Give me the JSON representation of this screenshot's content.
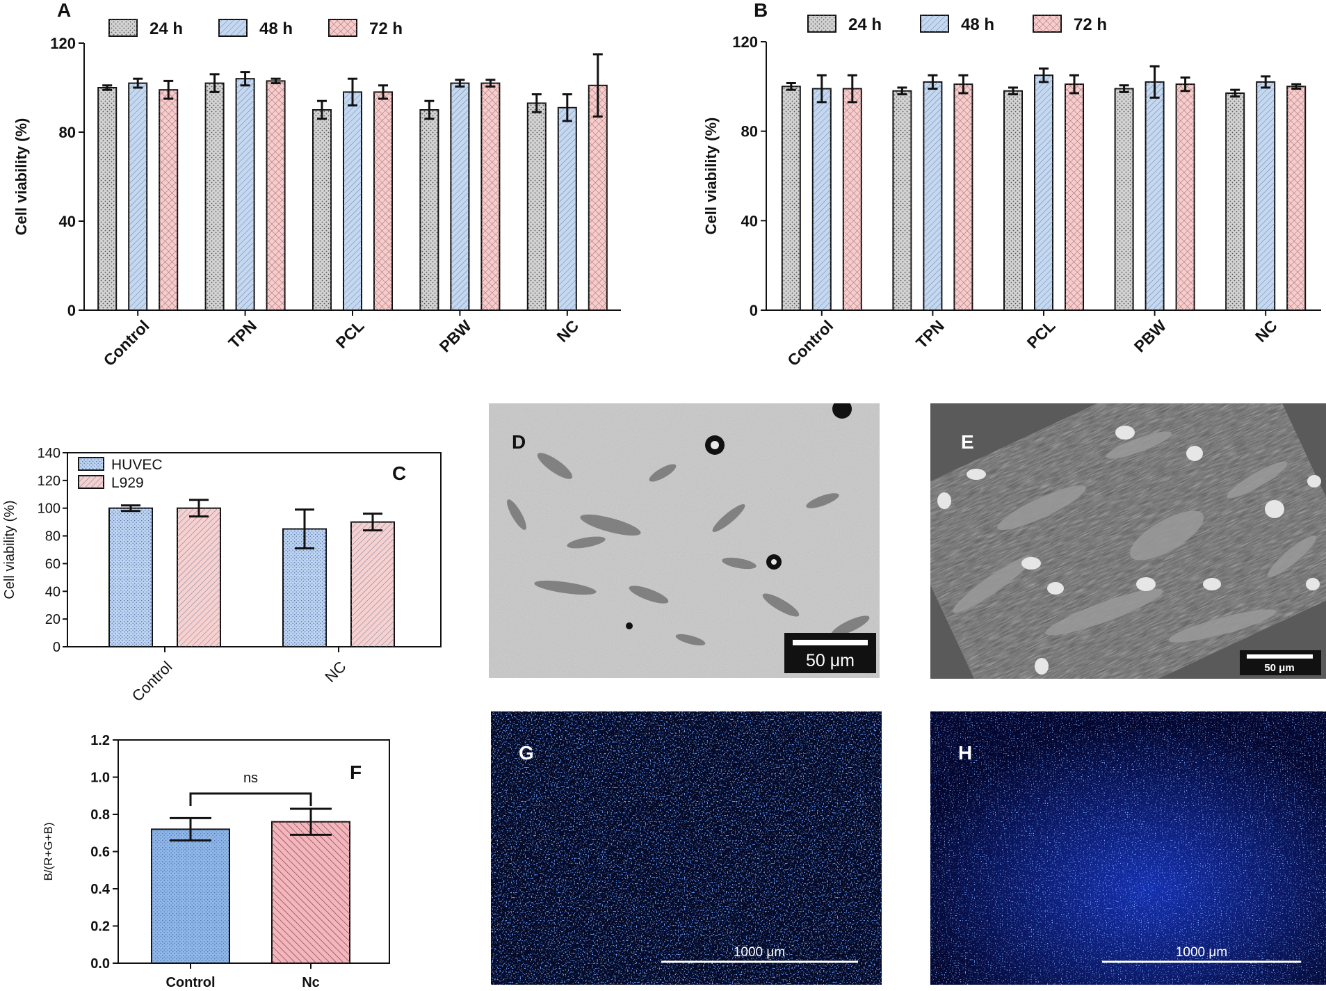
{
  "colors": {
    "h24": "#d3d3d3",
    "h48": "#c4d8f2",
    "h72": "#f6cccc",
    "huvec": "#bcd3f1",
    "l929": "#f7d0d0",
    "control_f": "#8fb7ea",
    "nc_f": "#f1b7bd",
    "axis": "#111111",
    "fluor": "#1438c8"
  },
  "chart_data": [
    {
      "panel": "A",
      "type": "bar",
      "title": "",
      "xlabel": "",
      "ylabel": "Cell viability (%)",
      "ylim": [
        0,
        120
      ],
      "yticks": [
        "0",
        "40",
        "80",
        "120"
      ],
      "categories": [
        "Control",
        "TPN",
        "PCL",
        "PBW",
        "NC"
      ],
      "legend_position": "top",
      "series": [
        {
          "name": "24 h",
          "values": [
            100,
            102,
            90,
            90,
            93
          ],
          "errors": [
            1,
            4,
            4,
            4,
            4
          ]
        },
        {
          "name": "48 h",
          "values": [
            102,
            104,
            98,
            102,
            91
          ],
          "errors": [
            2,
            3,
            6,
            1.5,
            6
          ]
        },
        {
          "name": "72 h",
          "values": [
            99,
            103,
            98,
            102,
            101
          ],
          "errors": [
            4,
            1,
            3,
            1.5,
            14
          ]
        }
      ]
    },
    {
      "panel": "B",
      "type": "bar",
      "title": "",
      "xlabel": "",
      "ylabel": "Cell viability (%)",
      "ylim": [
        0,
        120
      ],
      "yticks": [
        "0",
        "40",
        "80",
        "120"
      ],
      "categories": [
        "Control",
        "TPN",
        "PCL",
        "PBW",
        "NC"
      ],
      "legend_position": "top",
      "series": [
        {
          "name": "24 h",
          "values": [
            100,
            98,
            98,
            99,
            97
          ],
          "errors": [
            1.5,
            1.5,
            1.5,
            1.5,
            1.5
          ]
        },
        {
          "name": "48 h",
          "values": [
            99,
            102,
            105,
            102,
            102
          ],
          "errors": [
            6,
            3,
            3,
            7,
            2.5
          ]
        },
        {
          "name": "72 h",
          "values": [
            99,
            101,
            101,
            101,
            100
          ],
          "errors": [
            6,
            4,
            4,
            3,
            1
          ]
        }
      ]
    },
    {
      "panel": "C",
      "type": "bar",
      "title": "",
      "xlabel": "",
      "ylabel": "Cell viability (%)",
      "ylim": [
        0,
        140
      ],
      "yticks": [
        "0",
        "20",
        "40",
        "60",
        "80",
        "100",
        "120",
        "140"
      ],
      "categories": [
        "Control",
        "NC"
      ],
      "legend_position": "top-left",
      "series": [
        {
          "name": "HUVEC",
          "values": [
            100,
            85
          ],
          "errors": [
            2,
            14
          ]
        },
        {
          "name": "L929",
          "values": [
            100,
            90
          ],
          "errors": [
            6,
            6
          ]
        }
      ]
    },
    {
      "panel": "F",
      "type": "bar",
      "title": "",
      "xlabel": "",
      "ylabel": "B/(R+G+B)",
      "ylim": [
        0,
        1.2
      ],
      "yticks": [
        "0.0",
        "0.2",
        "0.4",
        "0.6",
        "0.8",
        "1.0",
        "1.2"
      ],
      "categories": [
        "Control",
        "Nc"
      ],
      "values": [
        0.72,
        0.76
      ],
      "errors": [
        0.06,
        0.07
      ],
      "annotation": "ns"
    }
  ],
  "panel_labels": {
    "a": "A",
    "b": "B",
    "c": "C",
    "d": "D",
    "e": "E",
    "f": "F",
    "g": "G",
    "h": "H"
  },
  "images": {
    "d": {
      "scale_bar": "50 μm"
    },
    "e": {
      "scale_bar": "50 μm"
    },
    "g": {
      "scale_bar": "1000 μm"
    },
    "h": {
      "scale_bar": "1000 μm"
    }
  }
}
